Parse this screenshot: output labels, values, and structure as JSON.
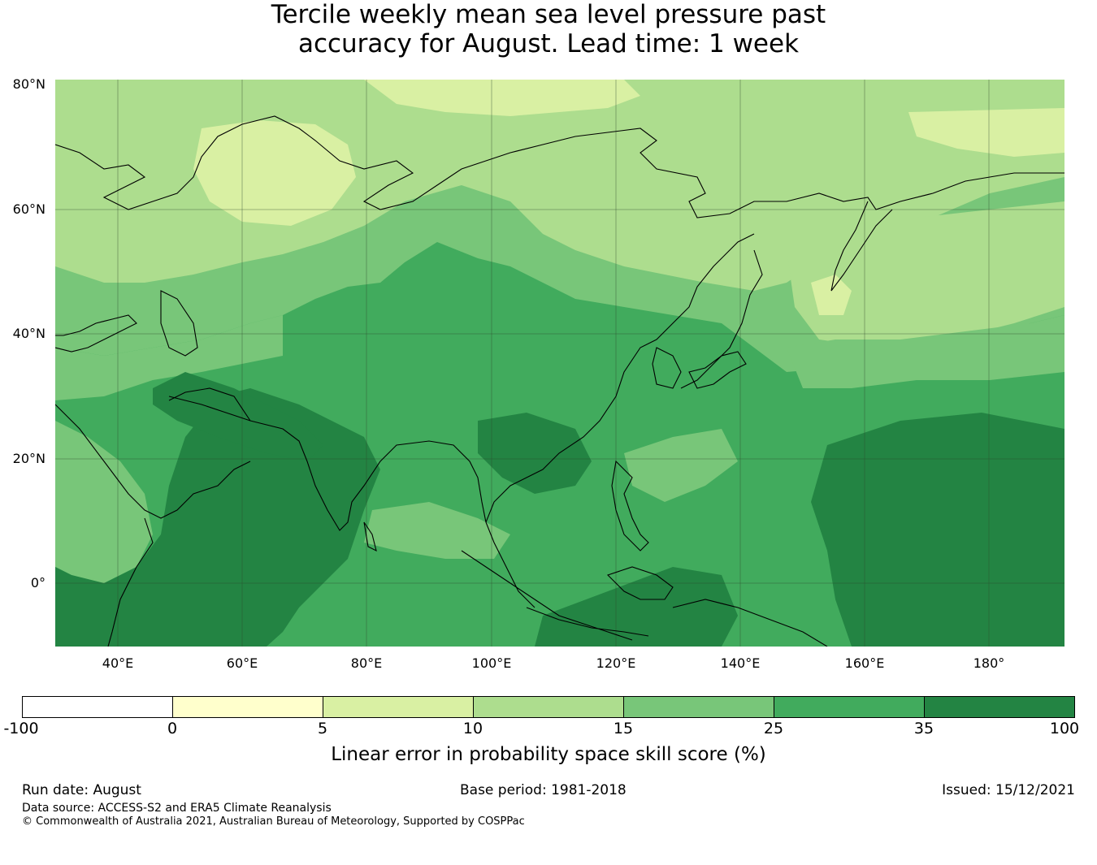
{
  "title_line1": "Tercile weekly mean sea level pressure past",
  "title_line2": "accuracy for August. Lead time: 1 week",
  "map": {
    "lat_labels": [
      "80°N",
      "60°N",
      "40°N",
      "20°N",
      "0°"
    ],
    "lon_labels": [
      "40°E",
      "60°E",
      "80°E",
      "100°E",
      "120°E",
      "140°E",
      "160°E",
      "180°"
    ],
    "colors": {
      "lt0": "#ffffff",
      "c0_5": "#ffffcc",
      "c5_10": "#d9f0a3",
      "c10_15": "#addd8e",
      "c15_25": "#78c679",
      "c25_35": "#41ab5d",
      "c35_100": "#238443"
    }
  },
  "colorbar": {
    "ticks": [
      "-100",
      "0",
      "5",
      "10",
      "15",
      "25",
      "35",
      "100"
    ],
    "colors": [
      "#ffffff",
      "#ffffcc",
      "#d9f0a3",
      "#addd8e",
      "#78c679",
      "#41ab5d",
      "#238443"
    ],
    "label": "Linear error in probability space skill score (%)"
  },
  "footer": {
    "run_date": "Run date: August",
    "base_period": "Base period: 1981-2018",
    "issued": "Issued: 15/12/2021",
    "data_source": "Data source: ACCESS-S2 and ERA5 Climate Reanalysis",
    "copyright": "© Commonwealth of Australia 2021, Australian Bureau of Meteorology, Supported by COSPPac"
  }
}
